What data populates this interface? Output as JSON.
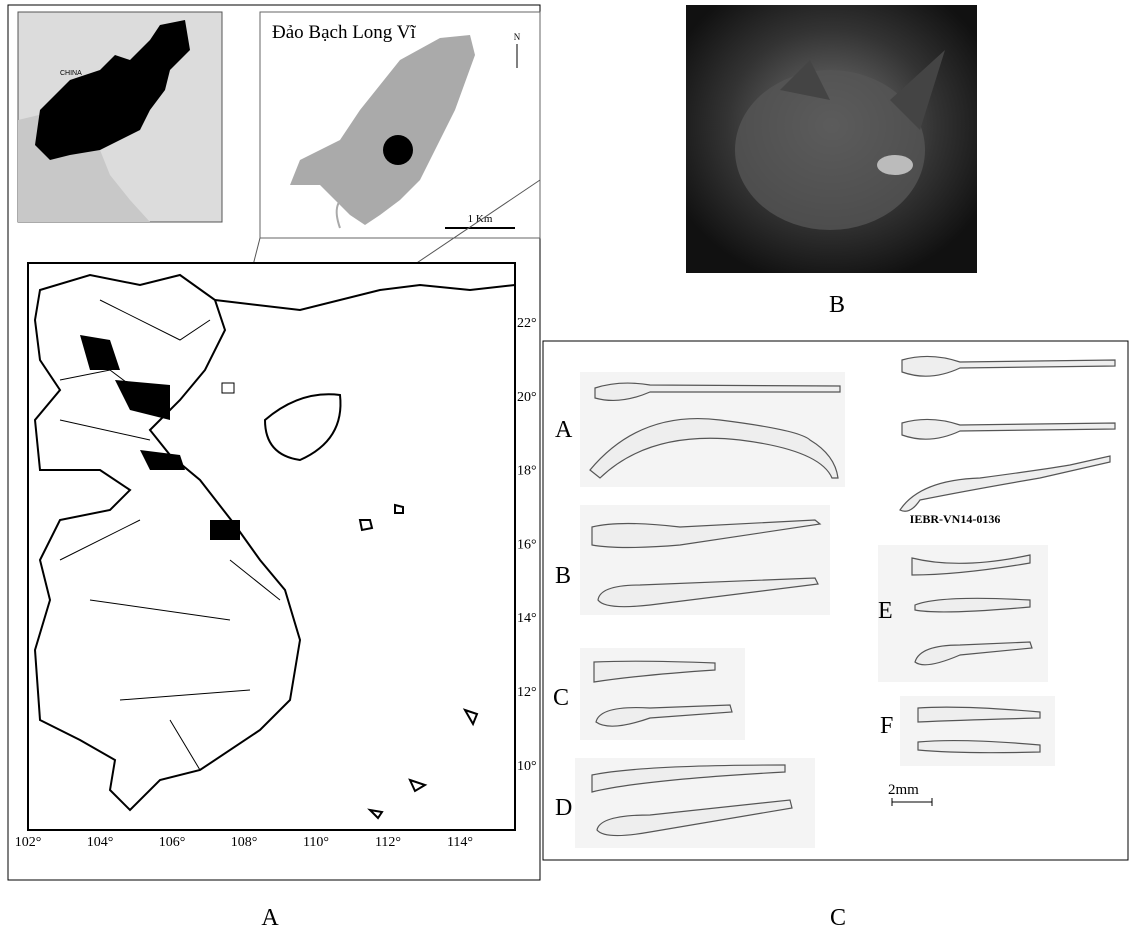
{
  "panels": {
    "A": {
      "label": "A",
      "overview": {
        "country": "CHINA"
      },
      "inset": {
        "title": "Đảo Bạch Long Vĩ",
        "north": "N",
        "scale": "1 Km"
      },
      "lat_labels": [
        "22°",
        "20°",
        "18°",
        "16°",
        "14°",
        "12°",
        "10°"
      ],
      "lon_labels": [
        "102°",
        "104°",
        "106°",
        "108°",
        "110°",
        "112°",
        "114°"
      ]
    },
    "B": {
      "label": "B"
    },
    "C": {
      "label": "C",
      "specimen": "IEBR-VN14-0136",
      "bacula": [
        "A",
        "B",
        "C",
        "D",
        "E",
        "F"
      ],
      "scale": "2mm"
    }
  }
}
